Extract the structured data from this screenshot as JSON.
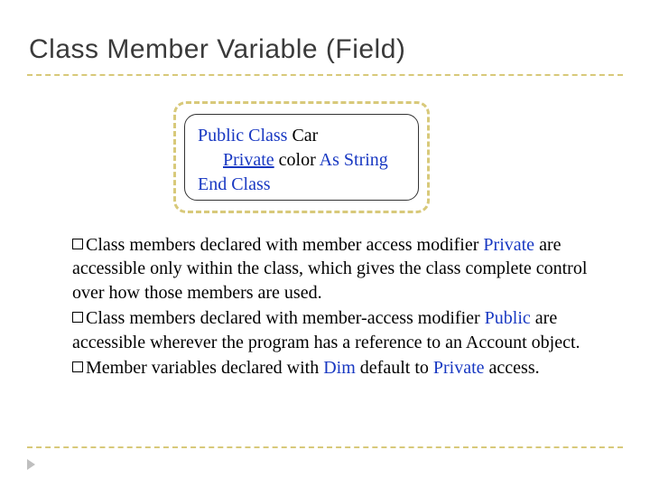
{
  "title": "Class Member Variable (Field)",
  "code": {
    "line1a": "Public Class ",
    "line1b": "Car",
    "line2a": "Private",
    "line2b": " color ",
    "line2c": "As String",
    "line3": "End Class"
  },
  "bullets": {
    "b1": {
      "p1": "Class members declared with member access modifier ",
      "kw": "Private",
      "p2": " are accessible only within the class, which gives the class complete control over how those members are used."
    },
    "b2": {
      "p1": "Class members declared with member-access modifier ",
      "kw": "Public",
      "p2": " are accessible wherever the program has a reference to an Account object."
    },
    "b3": {
      "p1": "Member variables declared with ",
      "kw1": "Dim",
      "p2": " default to ",
      "kw2": "Private",
      "p3": " access."
    }
  },
  "colors": {
    "keyword": "#1838c2",
    "dash": "#d8c97a",
    "text": "#000000",
    "title": "#3a3a3a"
  }
}
